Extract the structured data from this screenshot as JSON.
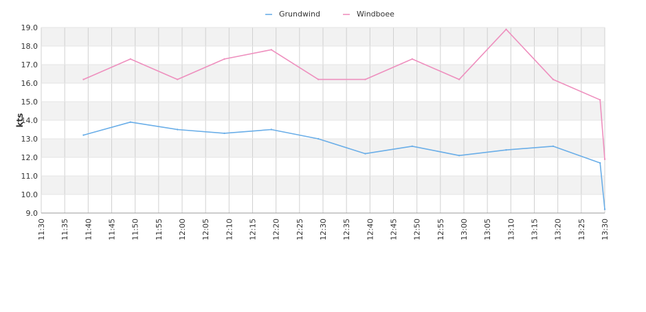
{
  "chart_data": {
    "type": "line",
    "title": "",
    "ylabel": "kts",
    "xlabel": "",
    "ylim": [
      9.0,
      19.0
    ],
    "yticks": [
      "9.0",
      "10.0",
      "11.0",
      "12.0",
      "13.0",
      "14.0",
      "15.0",
      "16.0",
      "17.0",
      "18.0",
      "19.0"
    ],
    "xticks": [
      "11:30",
      "11:35",
      "11:40",
      "11:45",
      "11:50",
      "11:55",
      "12:00",
      "12:05",
      "12:10",
      "12:15",
      "12:20",
      "12:25",
      "12:30",
      "12:35",
      "12:40",
      "12:45",
      "12:50",
      "12:55",
      "13:00",
      "13:05",
      "13:10",
      "13:15",
      "13:20",
      "13:25",
      "13:30"
    ],
    "xrange": [
      "11:30",
      "13:30"
    ],
    "grid": true,
    "legend_position": "top-center",
    "series": [
      {
        "name": "Grundwind",
        "color": "#6aaee8",
        "x": [
          "11:39",
          "11:49",
          "11:59",
          "12:09",
          "12:19",
          "12:29",
          "12:39",
          "12:49",
          "12:59",
          "13:09",
          "13:19",
          "13:29",
          "13:30"
        ],
        "values": [
          13.2,
          13.9,
          13.5,
          13.3,
          13.5,
          13.0,
          12.2,
          12.6,
          12.1,
          12.4,
          12.6,
          11.7,
          9.2
        ]
      },
      {
        "name": "Windboee",
        "color": "#ee8fbe",
        "x": [
          "11:39",
          "11:49",
          "11:59",
          "12:09",
          "12:19",
          "12:29",
          "12:39",
          "12:49",
          "12:59",
          "13:09",
          "13:19",
          "13:29",
          "13:30"
        ],
        "values": [
          16.2,
          17.3,
          16.2,
          17.3,
          17.8,
          16.2,
          16.2,
          17.3,
          16.2,
          18.9,
          16.2,
          15.1,
          11.9
        ]
      }
    ]
  }
}
